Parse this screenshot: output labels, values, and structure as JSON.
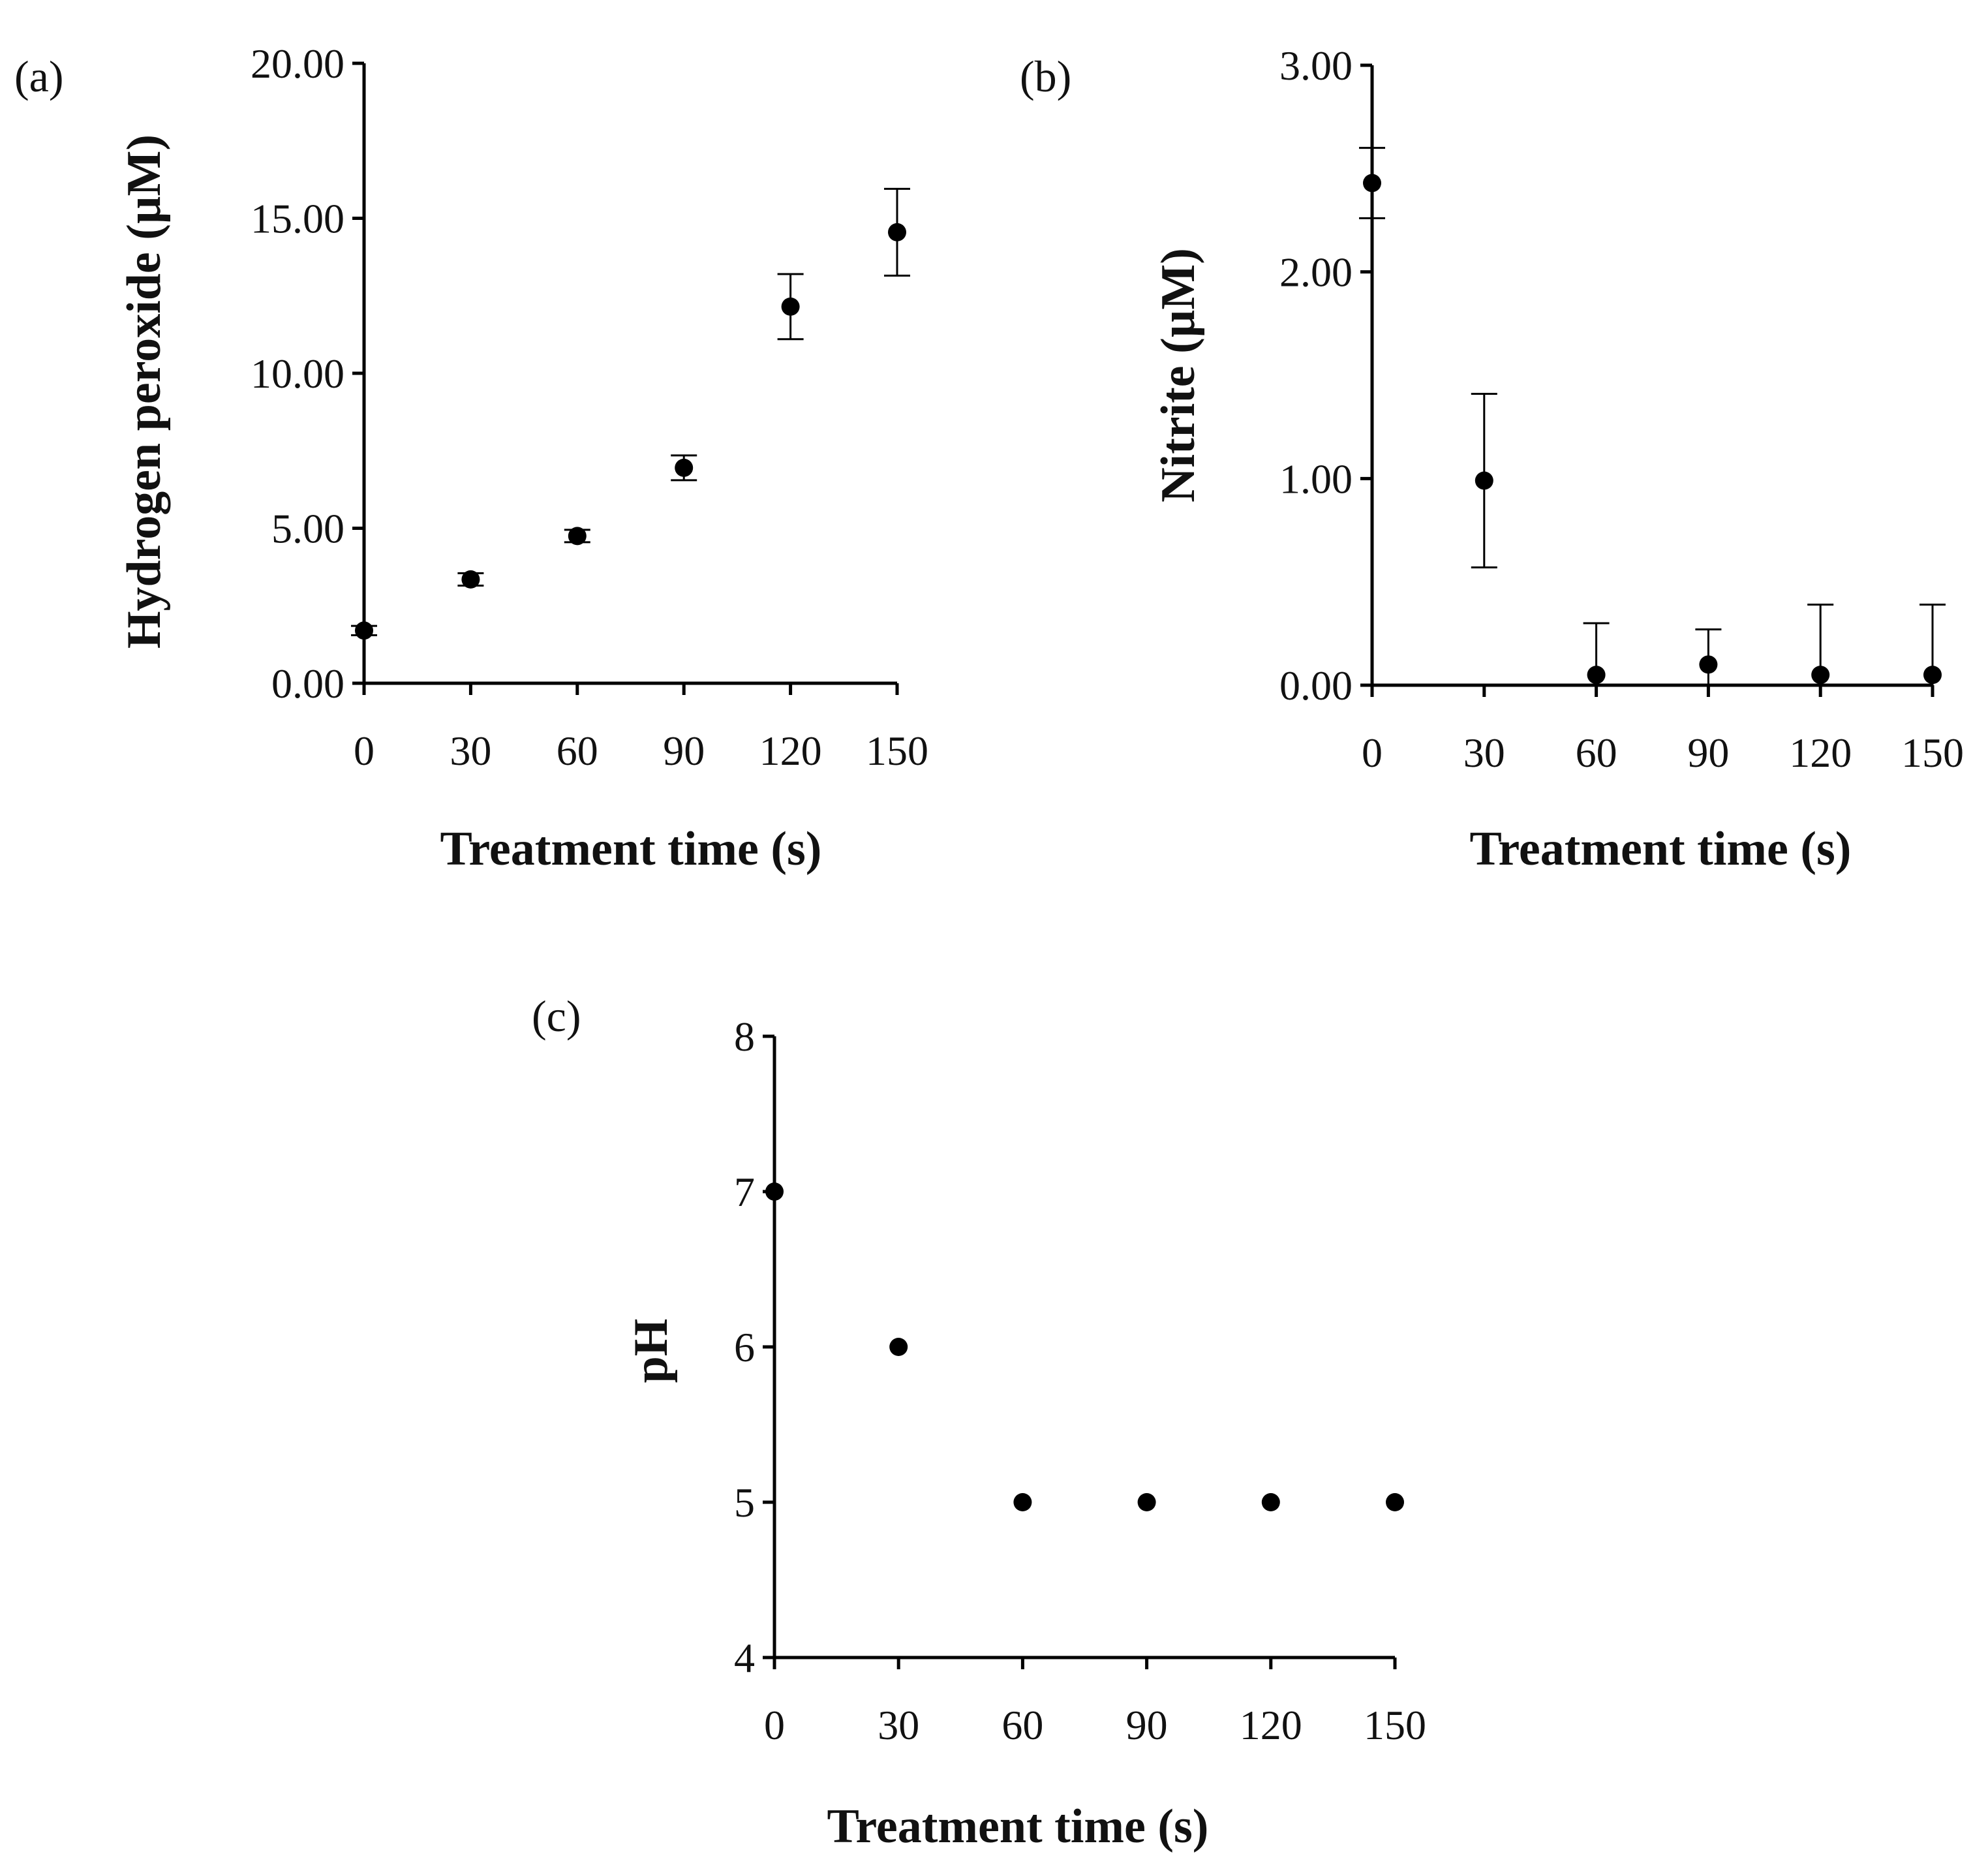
{
  "chart_data": [
    {
      "id": "a",
      "type": "scatter",
      "panel_label": "(a)",
      "title": "",
      "xlabel": "Treatment time (s)",
      "ylabel": "Hydrogen peroxide (µM)",
      "x": [
        0,
        30,
        60,
        90,
        120,
        150
      ],
      "y": [
        1.7,
        3.35,
        4.75,
        6.95,
        12.15,
        14.55
      ],
      "yerr": [
        0.15,
        0.2,
        0.2,
        0.4,
        1.05,
        1.4
      ],
      "xticks": [
        "0",
        "30",
        "60",
        "90",
        "120",
        "150"
      ],
      "xtick_values": [
        0,
        30,
        60,
        90,
        120,
        150
      ],
      "yticks": [
        "0.00",
        "5.00",
        "10.00",
        "15.00",
        "20.00"
      ],
      "ytick_values": [
        0,
        5,
        10,
        15,
        20
      ],
      "xlim": [
        0,
        150
      ],
      "ylim": [
        0,
        20
      ],
      "grid": false,
      "legend": "none"
    },
    {
      "id": "b",
      "type": "scatter",
      "panel_label": "(b)",
      "title": "",
      "xlabel": "Treatment time (s)",
      "ylabel": "Nitrite (µM)",
      "x": [
        0,
        30,
        60,
        90,
        120,
        150
      ],
      "y": [
        2.43,
        0.99,
        0.05,
        0.1,
        0.05,
        0.05
      ],
      "yerr": [
        0.17,
        0.42,
        0.25,
        0.17,
        0.34,
        0.34
      ],
      "xticks": [
        "0",
        "30",
        "60",
        "90",
        "120",
        "150"
      ],
      "xtick_values": [
        0,
        30,
        60,
        90,
        120,
        150
      ],
      "yticks": [
        "0.00",
        "1.00",
        "2.00",
        "3.00"
      ],
      "ytick_values": [
        0,
        1,
        2,
        3
      ],
      "xlim": [
        0,
        150
      ],
      "ylim": [
        0,
        3
      ],
      "grid": false,
      "legend": "none"
    },
    {
      "id": "c",
      "type": "scatter",
      "panel_label": "(c)",
      "title": "",
      "xlabel": "Treatment time (s)",
      "ylabel": "pH",
      "x": [
        0,
        30,
        60,
        90,
        120,
        150
      ],
      "y": [
        7,
        6,
        5,
        5,
        5,
        5
      ],
      "yerr": [
        0,
        0,
        0,
        0,
        0,
        0
      ],
      "xticks": [
        "0",
        "30",
        "60",
        "90",
        "120",
        "150"
      ],
      "xtick_values": [
        0,
        30,
        60,
        90,
        120,
        150
      ],
      "yticks": [
        "4",
        "5",
        "6",
        "7",
        "8"
      ],
      "ytick_values": [
        4,
        5,
        6,
        7,
        8
      ],
      "xlim": [
        0,
        150
      ],
      "ylim": [
        4,
        8
      ],
      "grid": false,
      "legend": "none"
    }
  ]
}
